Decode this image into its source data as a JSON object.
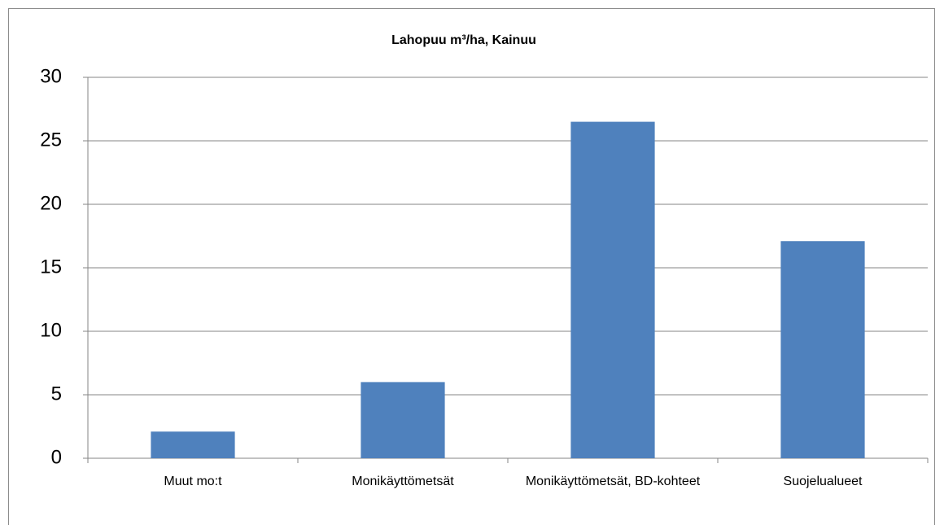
{
  "chart_data": {
    "type": "bar",
    "title": "Lahopuu m³/ha, Kainuu",
    "categories": [
      "Muut mo:t",
      "Monikäyttömetsät",
      "Monikäyttömetsät, BD-kohteet",
      "Suojelualueet"
    ],
    "values": [
      2.1,
      6.0,
      26.5,
      17.1
    ],
    "color": "#4f81bd",
    "ylim": [
      0,
      30
    ],
    "yticks": [
      0,
      5,
      10,
      15,
      20,
      25,
      30
    ],
    "grid": true
  }
}
